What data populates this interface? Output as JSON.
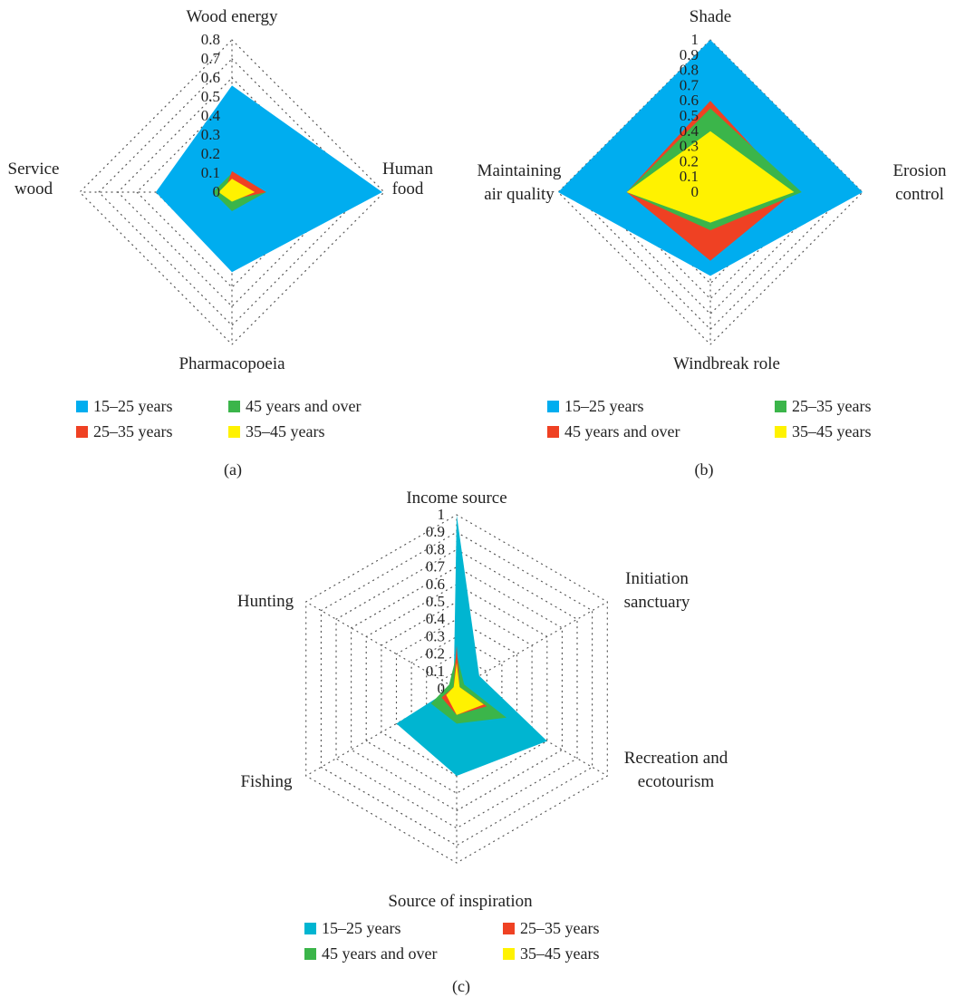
{
  "chart_data": [
    {
      "type": "radar",
      "panel_label": "(a)",
      "axes": [
        "Wood energy",
        "Human food",
        "Pharmacopoeia",
        "Service wood"
      ],
      "axis_label_lines": [
        [
          "Wood energy"
        ],
        [
          "Human",
          "food"
        ],
        [
          "Pharmacopoeia"
        ],
        [
          "Service",
          "wood"
        ]
      ],
      "ticks": [
        "0",
        "0.1",
        "0.2",
        "0.3",
        "0.4",
        "0.5",
        "0.6",
        "0.7",
        "0.8"
      ],
      "rmax": 0.8,
      "grid": "dotted",
      "series": [
        {
          "name": "15–25 years",
          "color": "#00ADEF",
          "values": [
            0.56,
            0.79,
            0.42,
            0.4
          ]
        },
        {
          "name": "45 years and over",
          "color": "#3BB54A",
          "values": [
            0.1,
            0.18,
            0.1,
            0.1
          ]
        },
        {
          "name": "25–35 years",
          "color": "#EF4123",
          "values": [
            0.11,
            0.18,
            0.04,
            0.04
          ]
        },
        {
          "name": "35–45 years",
          "color": "#FFF200",
          "values": [
            0.07,
            0.12,
            0.05,
            0.07
          ]
        }
      ],
      "legend": [
        {
          "name": "15–25 years",
          "color": "#00ADEF"
        },
        {
          "name": "45 years and over",
          "color": "#3BB54A"
        },
        {
          "name": "25–35 years",
          "color": "#EF4123"
        },
        {
          "name": "35–45 years",
          "color": "#FFF200"
        }
      ]
    },
    {
      "type": "radar",
      "panel_label": "(b)",
      "axes": [
        "Shade",
        "Erosion control",
        "Windbreak role",
        "Maintaining air quality"
      ],
      "axis_label_lines": [
        [
          "Shade"
        ],
        [
          "Erosion",
          "control"
        ],
        [
          "Windbreak role"
        ],
        [
          "Maintaining",
          "air quality"
        ]
      ],
      "ticks": [
        "0",
        "0.1",
        "0.2",
        "0.3",
        "0.4",
        "0.5",
        "0.6",
        "0.7",
        "0.8",
        "0.9",
        "1"
      ],
      "rmax": 1,
      "grid": "dotted",
      "series": [
        {
          "name": "15–25 years",
          "color": "#00ADEF",
          "values": [
            1.0,
            1.0,
            0.55,
            1.0
          ]
        },
        {
          "name": "45 years and over",
          "color": "#EF4123",
          "values": [
            0.6,
            0.55,
            0.45,
            0.55
          ]
        },
        {
          "name": "25–35 years",
          "color": "#3BB54A",
          "values": [
            0.55,
            0.6,
            0.25,
            0.55
          ]
        },
        {
          "name": "35–45 years",
          "color": "#FFF200",
          "values": [
            0.4,
            0.55,
            0.2,
            0.55
          ]
        }
      ],
      "legend": [
        {
          "name": "15–25 years",
          "color": "#00ADEF"
        },
        {
          "name": "25–35 years",
          "color": "#3BB54A"
        },
        {
          "name": "45 years and over",
          "color": "#EF4123"
        },
        {
          "name": "35–45 years",
          "color": "#FFF200"
        }
      ]
    },
    {
      "type": "radar",
      "panel_label": "(c)",
      "axes": [
        "Income source",
        "Initiation sanctuary",
        "Recreation and ecotourism",
        "Source of inspiration",
        "Fishing",
        "Hunting"
      ],
      "axis_label_lines": [
        [
          "Income source"
        ],
        [
          "Initiation",
          "sanctuary"
        ],
        [
          "Recreation and",
          "ecotourism"
        ],
        [
          "Source of inspiration"
        ],
        [
          "Fishing"
        ],
        [
          "Hunting"
        ]
      ],
      "ticks": [
        "0",
        "0.1",
        "0.2",
        "0.3",
        "0.4",
        "0.5",
        "0.6",
        "0.7",
        "0.8",
        "0.9",
        "1"
      ],
      "rmax": 1,
      "grid": "dotted",
      "series": [
        {
          "name": "15–25 years",
          "color": "#00B5D1",
          "values": [
            1.0,
            0.15,
            0.6,
            0.5,
            0.4,
            0.02
          ]
        },
        {
          "name": "45 years and over",
          "color": "#3BB54A",
          "values": [
            0.2,
            0.05,
            0.33,
            0.2,
            0.17,
            0.05
          ]
        },
        {
          "name": "25–35 years",
          "color": "#EF4123",
          "values": [
            0.25,
            0.02,
            0.2,
            0.15,
            0.1,
            0.02
          ]
        },
        {
          "name": "35–45 years",
          "color": "#FFF200",
          "values": [
            0.15,
            0.02,
            0.18,
            0.15,
            0.07,
            0.02
          ]
        }
      ],
      "legend": [
        {
          "name": "15–25 years",
          "color": "#00B5D1"
        },
        {
          "name": "25–35 years",
          "color": "#EF4123"
        },
        {
          "name": "45 years and over",
          "color": "#3BB54A"
        },
        {
          "name": "35–45 years",
          "color": "#FFF200"
        }
      ]
    }
  ]
}
